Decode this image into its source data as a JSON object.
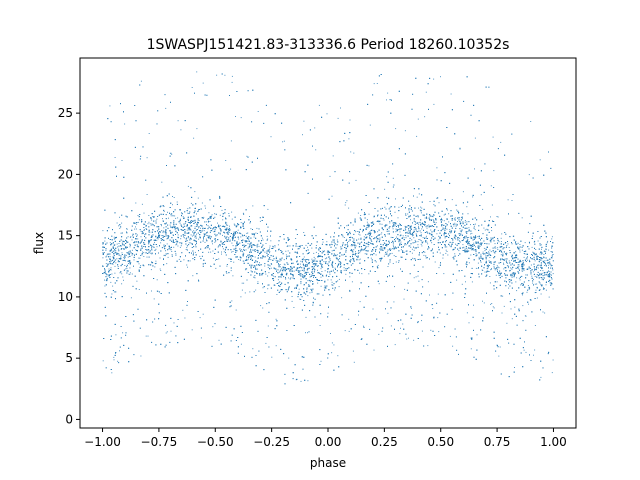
{
  "chart_data": {
    "type": "scatter",
    "title": "1SWASPJ151421.83-313336.6 Period 18260.10352s",
    "xlabel": "phase",
    "ylabel": "flux",
    "xlim": [
      -1.1,
      1.1
    ],
    "ylim": [
      -0.7,
      29.5
    ],
    "xticks": [
      -1.0,
      -0.75,
      -0.5,
      -0.25,
      0.0,
      0.25,
      0.5,
      0.75,
      1.0
    ],
    "xtick_labels": [
      "−1.00",
      "−0.75",
      "−0.50",
      "−0.25",
      "0.00",
      "0.25",
      "0.50",
      "0.75",
      "1.00"
    ],
    "yticks": [
      0,
      5,
      10,
      15,
      20,
      25
    ],
    "ytick_labels": [
      "0",
      "5",
      "10",
      "15",
      "20",
      "25"
    ],
    "grid": false,
    "marker_color": "#1f77b4",
    "series": [
      {
        "phase_range": [
          -1.0,
          1.0
        ],
        "curve_phase": [
          -1.0,
          -0.9,
          -0.8,
          -0.7,
          -0.6,
          -0.5,
          -0.4,
          -0.3,
          -0.2,
          -0.1,
          0.0,
          0.1,
          0.2,
          0.3,
          0.4,
          0.5,
          0.6,
          0.7,
          0.8,
          0.9,
          1.0
        ],
        "curve_flux": [
          13.0,
          13.8,
          14.8,
          15.3,
          15.4,
          15.2,
          14.6,
          13.5,
          12.4,
          12.2,
          12.7,
          13.8,
          14.8,
          15.3,
          15.5,
          15.2,
          14.7,
          13.8,
          12.8,
          12.5,
          12.8
        ],
        "core_spread": 1.2,
        "outlier_flux_range": [
          0.5,
          28.5
        ]
      }
    ]
  }
}
